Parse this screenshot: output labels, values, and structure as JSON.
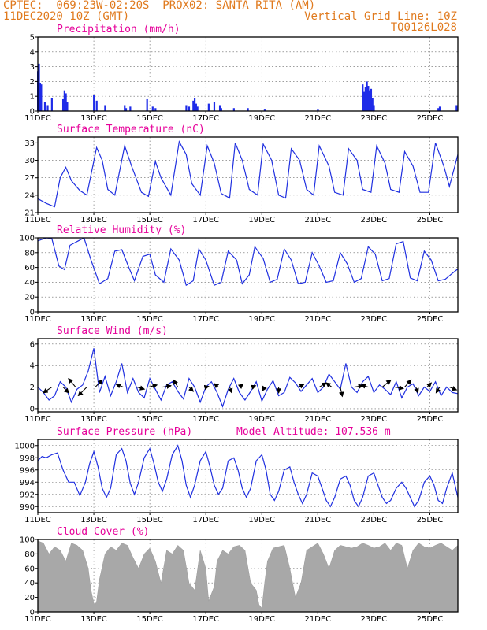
{
  "header": {
    "left_line1": "CPTEC:  069:23W-02:20S  PROX02: SANTA RITA (AM)",
    "left_line2": "11DEC2020 10Z (GMT)",
    "right_line2": "Vertical Grid Line: 10Z",
    "right_line3": "TQ0126L028"
  },
  "colors": {
    "header": "#e07a1e",
    "title": "#e6009a",
    "series": "#2030e0",
    "bars": "#1e2be8",
    "cloud": "#a8a8a8",
    "arrow": "#000000"
  },
  "chart_data": [
    {
      "type": "bar",
      "title": "Precipitation (mm/h)",
      "ylim": [
        0,
        5
      ],
      "yticks": [
        0,
        1,
        2,
        3,
        4,
        5
      ],
      "xlim": [
        0,
        15
      ],
      "xtick_positions": [
        0,
        2,
        4,
        6,
        8,
        10,
        12,
        14
      ],
      "xtick_labels": [
        "11DEC",
        "13DEC",
        "15DEC",
        "17DEC",
        "19DEC",
        "21DEC",
        "23DEC",
        "25DEC"
      ],
      "x": [
        0.0,
        0.04,
        0.08,
        0.12,
        0.25,
        0.35,
        0.5,
        0.9,
        0.95,
        1.0,
        1.05,
        2.0,
        2.1,
        2.4,
        3.1,
        3.15,
        3.3,
        3.9,
        4.1,
        4.2,
        5.3,
        5.4,
        5.55,
        5.6,
        5.65,
        5.7,
        6.1,
        6.3,
        6.5,
        6.55,
        7.0,
        7.5,
        8.1,
        10.0,
        11.6,
        11.65,
        11.7,
        11.75,
        11.8,
        11.85,
        11.9,
        11.95,
        12.0,
        14.3,
        14.35,
        14.95
      ],
      "values": [
        2.7,
        3.2,
        1.9,
        1.8,
        0.6,
        0.4,
        0.9,
        0.8,
        1.4,
        1.2,
        0.6,
        1.1,
        0.7,
        0.4,
        0.4,
        0.2,
        0.3,
        0.8,
        0.3,
        0.2,
        0.4,
        0.3,
        0.7,
        0.9,
        0.5,
        0.3,
        0.5,
        0.6,
        0.4,
        0.2,
        0.2,
        0.2,
        0.1,
        0.1,
        1.8,
        1.3,
        1.6,
        2.0,
        1.7,
        1.4,
        1.5,
        0.9,
        0.4,
        0.2,
        0.3,
        0.4
      ]
    },
    {
      "type": "line",
      "title": "Surface Temperature (nC)",
      "ylim": [
        21,
        34
      ],
      "yticks": [
        21,
        24,
        27,
        30,
        33
      ],
      "xlim": [
        0,
        15
      ],
      "xtick_positions": [
        0,
        2,
        4,
        6,
        8,
        10,
        12,
        14
      ],
      "xtick_labels": [
        "11DEC",
        "13DEC",
        "15DEC",
        "17DEC",
        "19DEC",
        "21DEC",
        "23DEC",
        "25DEC"
      ],
      "x": [
        0,
        0.3,
        0.6,
        0.8,
        1.0,
        1.2,
        1.5,
        1.75,
        2.1,
        2.3,
        2.5,
        2.75,
        3.1,
        3.35,
        3.7,
        3.95,
        4.2,
        4.4,
        4.75,
        5.05,
        5.3,
        5.5,
        5.8,
        6.05,
        6.3,
        6.55,
        6.85,
        7.05,
        7.3,
        7.55,
        7.85,
        8.05,
        8.35,
        8.6,
        8.85,
        9.05,
        9.35,
        9.6,
        9.85,
        10.05,
        10.4,
        10.6,
        10.9,
        11.1,
        11.4,
        11.6,
        11.9,
        12.1,
        12.4,
        12.6,
        12.9,
        13.1,
        13.4,
        13.65,
        13.95,
        14.2,
        14.5,
        14.7,
        15.0
      ],
      "values": [
        23.4,
        22.6,
        22.0,
        27.0,
        28.8,
        26.5,
        24.8,
        24.0,
        32.2,
        30.0,
        25.0,
        24.0,
        32.5,
        29.0,
        24.5,
        23.8,
        29.8,
        27.0,
        24.0,
        33.2,
        31.0,
        26.0,
        24.0,
        32.5,
        29.5,
        24.3,
        23.5,
        33.0,
        30.0,
        25.0,
        24.0,
        32.8,
        30.0,
        24.0,
        23.5,
        32.0,
        30.0,
        25.0,
        24.0,
        32.5,
        29.0,
        24.5,
        24.0,
        32.0,
        30.0,
        25.0,
        24.5,
        32.5,
        29.5,
        25.0,
        24.5,
        31.5,
        29.0,
        24.5,
        24.5,
        33.0,
        29.0,
        25.5,
        31.0
      ]
    },
    {
      "type": "line",
      "title": "Relative Humidity (%)",
      "ylim": [
        0,
        100
      ],
      "yticks": [
        0,
        20,
        40,
        60,
        80,
        100
      ],
      "xlim": [
        0,
        15
      ],
      "xtick_positions": [
        0,
        2,
        4,
        6,
        8,
        10,
        12,
        14
      ],
      "xtick_labels": [
        "11DEC",
        "13DEC",
        "15DEC",
        "17DEC",
        "19DEC",
        "21DEC",
        "23DEC",
        "25DEC"
      ],
      "x": [
        0,
        0.3,
        0.5,
        0.75,
        0.95,
        1.15,
        1.5,
        1.65,
        1.9,
        2.2,
        2.5,
        2.75,
        3.0,
        3.25,
        3.45,
        3.75,
        4.0,
        4.2,
        4.5,
        4.75,
        5.05,
        5.3,
        5.55,
        5.75,
        6.0,
        6.3,
        6.55,
        6.8,
        7.1,
        7.3,
        7.55,
        7.75,
        8.05,
        8.3,
        8.55,
        8.8,
        9.05,
        9.3,
        9.55,
        9.8,
        10.05,
        10.3,
        10.55,
        10.8,
        11.05,
        11.3,
        11.55,
        11.8,
        12.05,
        12.3,
        12.55,
        12.8,
        13.05,
        13.3,
        13.55,
        13.8,
        14.05,
        14.3,
        14.55,
        14.8,
        15.0
      ],
      "values": [
        96,
        100,
        99,
        62,
        57,
        90,
        97,
        100,
        70,
        38,
        45,
        82,
        84,
        60,
        42,
        75,
        78,
        50,
        40,
        85,
        70,
        36,
        42,
        85,
        70,
        36,
        40,
        82,
        70,
        38,
        50,
        88,
        72,
        40,
        44,
        85,
        70,
        38,
        40,
        80,
        62,
        40,
        42,
        80,
        65,
        40,
        45,
        88,
        78,
        42,
        45,
        92,
        95,
        46,
        42,
        82,
        70,
        42,
        44,
        52,
        58
      ]
    },
    {
      "type": "line",
      "title": "Surface Wind (m/s)",
      "ylim": [
        -0.3,
        6.5
      ],
      "yticks": [
        0,
        2,
        4,
        6
      ],
      "xlim": [
        0,
        15
      ],
      "xtick_positions": [
        0,
        2,
        4,
        6,
        8,
        10,
        12,
        14
      ],
      "xtick_labels": [
        "11DEC",
        "13DEC",
        "15DEC",
        "17DEC",
        "19DEC",
        "21DEC",
        "23DEC",
        "25DEC"
      ],
      "x": [
        0,
        0.2,
        0.4,
        0.6,
        0.8,
        1.0,
        1.2,
        1.4,
        1.6,
        1.8,
        2.0,
        2.2,
        2.4,
        2.6,
        2.8,
        3.0,
        3.2,
        3.4,
        3.6,
        3.8,
        4.0,
        4.2,
        4.4,
        4.6,
        4.8,
        5.0,
        5.2,
        5.4,
        5.6,
        5.8,
        6.0,
        6.2,
        6.4,
        6.6,
        6.8,
        7.0,
        7.2,
        7.4,
        7.6,
        7.8,
        8.0,
        8.2,
        8.4,
        8.6,
        8.8,
        9.0,
        9.2,
        9.4,
        9.6,
        9.8,
        10.0,
        10.2,
        10.4,
        10.6,
        10.8,
        11.0,
        11.2,
        11.4,
        11.6,
        11.8,
        12.0,
        12.2,
        12.4,
        12.6,
        12.8,
        13.0,
        13.2,
        13.4,
        13.6,
        13.8,
        14.0,
        14.2,
        14.4,
        14.6,
        14.8,
        15.0
      ],
      "values": [
        2.0,
        1.5,
        0.8,
        1.2,
        2.5,
        2.0,
        0.6,
        1.8,
        2.2,
        3.5,
        5.6,
        1.5,
        3.0,
        1.2,
        2.5,
        4.2,
        1.5,
        2.8,
        1.5,
        1.0,
        2.8,
        1.8,
        0.8,
        2.2,
        2.5,
        1.6,
        0.9,
        2.8,
        2.0,
        0.6,
        2.0,
        2.5,
        1.5,
        0.2,
        1.8,
        2.8,
        1.5,
        0.8,
        1.6,
        2.5,
        0.7,
        1.8,
        2.6,
        1.2,
        1.5,
        2.9,
        2.4,
        1.6,
        2.2,
        2.8,
        1.5,
        2.0,
        3.2,
        2.5,
        1.8,
        4.2,
        2.0,
        1.5,
        2.5,
        3.0,
        1.5,
        2.2,
        1.8,
        1.3,
        2.5,
        1.0,
        2.0,
        2.3,
        1.2,
        2.0,
        1.6,
        2.5,
        1.2,
        2.0,
        1.5,
        1.4
      ],
      "vectors": [
        {
          "x": 0.5,
          "s": 2.0,
          "u": -1.2,
          "v": -0.8
        },
        {
          "x": 0.9,
          "s": 2.0,
          "u": 0.8,
          "v": -0.8
        },
        {
          "x": 1.35,
          "s": 2.0,
          "u": -1.0,
          "v": 1.2
        },
        {
          "x": 1.75,
          "s": 2.0,
          "u": -1.2,
          "v": -1.2
        },
        {
          "x": 2.05,
          "s": 2.0,
          "u": 1.0,
          "v": 1.0
        },
        {
          "x": 3.05,
          "s": 2.0,
          "u": -1.0,
          "v": 0.4
        },
        {
          "x": 3.55,
          "s": 2.0,
          "u": 1.0,
          "v": -0.3
        },
        {
          "x": 3.95,
          "s": 2.0,
          "u": 1.2,
          "v": 0.3
        },
        {
          "x": 4.45,
          "s": 2.0,
          "u": 1.2,
          "v": 0.2
        },
        {
          "x": 5.0,
          "s": 2.0,
          "u": -0.6,
          "v": 1.0
        },
        {
          "x": 5.4,
          "s": 2.0,
          "u": 0.6,
          "v": -0.6
        },
        {
          "x": 6.0,
          "s": 2.0,
          "u": 0.4,
          "v": 0.1
        },
        {
          "x": 6.45,
          "s": 2.0,
          "u": -0.6,
          "v": 0.5
        },
        {
          "x": 6.85,
          "s": 2.0,
          "u": 0.3,
          "v": -0.8
        },
        {
          "x": 7.2,
          "s": 2.0,
          "u": 0.5,
          "v": 0.4
        },
        {
          "x": 7.65,
          "s": 2.0,
          "u": 0.5,
          "v": 0.2
        },
        {
          "x": 8.1,
          "s": 2.0,
          "u": -0.3,
          "v": -0.5
        },
        {
          "x": 8.6,
          "s": 2.0,
          "u": 0.0,
          "v": -0.8
        },
        {
          "x": 9.3,
          "s": 2.0,
          "u": 0.8,
          "v": 0.4
        },
        {
          "x": 10.05,
          "s": 2.0,
          "u": 1.0,
          "v": 0.6
        },
        {
          "x": 10.5,
          "s": 2.0,
          "u": -0.8,
          "v": 0.6
        },
        {
          "x": 10.8,
          "s": 2.0,
          "u": 0.3,
          "v": -1.3
        },
        {
          "x": 11.3,
          "s": 2.0,
          "u": 1.2,
          "v": 0.2
        },
        {
          "x": 11.8,
          "s": 2.0,
          "u": -1.0,
          "v": 0.3
        },
        {
          "x": 12.3,
          "s": 2.0,
          "u": 1.2,
          "v": 1.0
        },
        {
          "x": 12.75,
          "s": 2.0,
          "u": 1.2,
          "v": -0.2
        },
        {
          "x": 13.1,
          "s": 2.0,
          "u": 0.9,
          "v": 1.0
        },
        {
          "x": 13.5,
          "s": 2.0,
          "u": 0.3,
          "v": -0.8
        },
        {
          "x": 13.9,
          "s": 2.0,
          "u": 0.6,
          "v": 0.6
        },
        {
          "x": 14.35,
          "s": 2.0,
          "u": -0.5,
          "v": -0.8
        },
        {
          "x": 14.7,
          "s": 2.0,
          "u": 1.0,
          "v": -0.4
        }
      ]
    },
    {
      "type": "line",
      "title": "Surface Pressure (hPa)",
      "subtitle": "Model Altitude: 107.536 m",
      "ylim": [
        989,
        1001
      ],
      "yticks": [
        990,
        992,
        994,
        996,
        998,
        1000
      ],
      "xlim": [
        0,
        15
      ],
      "xtick_positions": [
        0,
        2,
        4,
        6,
        8,
        10,
        12,
        14
      ],
      "xtick_labels": [
        "11DEC",
        "13DEC",
        "15DEC",
        "17DEC",
        "19DEC",
        "21DEC",
        "23DEC",
        "25DEC"
      ],
      "x": [
        0,
        0.15,
        0.3,
        0.5,
        0.7,
        0.9,
        1.1,
        1.3,
        1.5,
        1.7,
        1.85,
        2.0,
        2.15,
        2.3,
        2.45,
        2.6,
        2.8,
        3.0,
        3.15,
        3.3,
        3.45,
        3.6,
        3.8,
        4.0,
        4.15,
        4.3,
        4.45,
        4.6,
        4.8,
        5.0,
        5.15,
        5.3,
        5.45,
        5.6,
        5.8,
        6.0,
        6.15,
        6.3,
        6.45,
        6.6,
        6.8,
        7.0,
        7.15,
        7.3,
        7.45,
        7.6,
        7.8,
        8.0,
        8.15,
        8.3,
        8.45,
        8.6,
        8.8,
        9.0,
        9.15,
        9.3,
        9.45,
        9.6,
        9.8,
        10.0,
        10.15,
        10.3,
        10.45,
        10.6,
        10.8,
        11.0,
        11.15,
        11.3,
        11.45,
        11.6,
        11.8,
        12.0,
        12.15,
        12.3,
        12.45,
        12.6,
        12.8,
        13.0,
        13.15,
        13.3,
        13.45,
        13.6,
        13.8,
        14.0,
        14.15,
        14.3,
        14.45,
        14.6,
        14.8,
        15.0
      ],
      "values": [
        997.5,
        998.2,
        998.0,
        998.5,
        998.8,
        996.0,
        994.0,
        994.0,
        991.8,
        994.0,
        997.0,
        999.0,
        996.5,
        993.0,
        991.5,
        993.0,
        998.5,
        999.5,
        997.5,
        993.8,
        992.0,
        994.0,
        998.0,
        999.5,
        997.0,
        994.0,
        992.5,
        994.5,
        998.5,
        1000.0,
        997.5,
        993.5,
        991.5,
        993.5,
        997.5,
        999.0,
        996.5,
        993.5,
        992.0,
        993.0,
        997.5,
        998.0,
        996.0,
        993.0,
        991.5,
        993.0,
        997.5,
        998.5,
        996.0,
        992.0,
        991.0,
        992.5,
        996.0,
        996.5,
        994.0,
        992.0,
        990.5,
        992.0,
        995.5,
        995.0,
        993.0,
        991.0,
        990.0,
        991.5,
        994.5,
        995.0,
        993.5,
        991.0,
        990.0,
        991.5,
        995.0,
        995.5,
        993.5,
        991.5,
        990.5,
        991.0,
        993.0,
        994.0,
        993.0,
        991.5,
        990.0,
        991.0,
        994.0,
        995.0,
        993.5,
        991.0,
        990.5,
        993.0,
        995.5,
        991.5
      ]
    },
    {
      "type": "area",
      "title": "Cloud Cover (%)",
      "ylim": [
        0,
        100
      ],
      "yticks": [
        0,
        20,
        40,
        60,
        80,
        100
      ],
      "xlim": [
        0,
        15
      ],
      "xtick_positions": [
        0,
        2,
        4,
        6,
        8,
        10,
        12,
        14
      ],
      "xtick_labels": [
        "11DEC",
        "13DEC",
        "15DEC",
        "17DEC",
        "19DEC",
        "21DEC",
        "23DEC",
        "25DEC"
      ],
      "x": [
        0,
        0.2,
        0.4,
        0.6,
        0.8,
        1.0,
        1.2,
        1.4,
        1.6,
        1.8,
        1.9,
        2.0,
        2.05,
        2.1,
        2.2,
        2.4,
        2.6,
        2.8,
        3.0,
        3.2,
        3.4,
        3.6,
        3.8,
        4.0,
        4.2,
        4.4,
        4.6,
        4.8,
        5.0,
        5.2,
        5.4,
        5.6,
        5.8,
        6.0,
        6.1,
        6.2,
        6.3,
        6.4,
        6.6,
        6.8,
        7.0,
        7.2,
        7.4,
        7.6,
        7.8,
        7.9,
        8.0,
        8.1,
        8.2,
        8.4,
        8.6,
        8.8,
        9.0,
        9.2,
        9.4,
        9.6,
        9.8,
        10.0,
        10.2,
        10.4,
        10.6,
        10.8,
        11.0,
        11.2,
        11.4,
        11.6,
        11.8,
        12.0,
        12.2,
        12.4,
        12.6,
        12.8,
        13.0,
        13.2,
        13.4,
        13.6,
        13.8,
        14.0,
        14.2,
        14.4,
        14.6,
        14.8,
        15.0
      ],
      "values": [
        98,
        95,
        80,
        90,
        85,
        70,
        95,
        92,
        85,
        60,
        30,
        12,
        10,
        15,
        45,
        80,
        90,
        85,
        95,
        92,
        75,
        60,
        80,
        88,
        70,
        40,
        85,
        80,
        92,
        85,
        40,
        30,
        85,
        60,
        15,
        25,
        35,
        70,
        85,
        80,
        90,
        92,
        85,
        40,
        30,
        10,
        5,
        40,
        70,
        88,
        90,
        92,
        60,
        20,
        40,
        85,
        90,
        95,
        80,
        60,
        85,
        92,
        90,
        88,
        90,
        95,
        92,
        88,
        90,
        95,
        85,
        95,
        92,
        60,
        85,
        95,
        90,
        88,
        92,
        95,
        90,
        85,
        92
      ]
    }
  ]
}
